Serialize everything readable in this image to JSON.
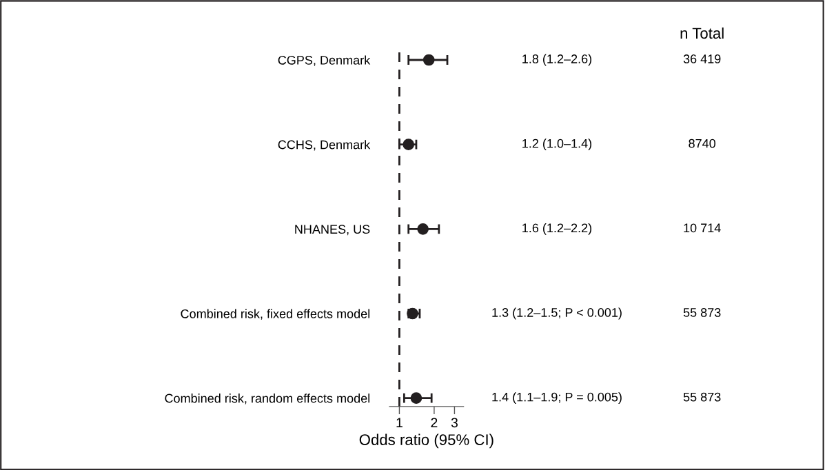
{
  "chart_data": {
    "type": "scatter",
    "orientation": "horizontal",
    "xlabel": "Odds ratio (95% CI)",
    "categories": [
      "CGPS, Denmark",
      "CCHS, Denmark",
      "NHANES, US",
      "Combined risk, fixed effects model",
      "Combined risk, random effects model"
    ],
    "values": [
      1.8,
      1.2,
      1.6,
      1.3,
      1.4
    ],
    "errors": [
      [
        1.2,
        2.6
      ],
      [
        1.0,
        1.4
      ],
      [
        1.2,
        2.2
      ],
      [
        1.2,
        1.5
      ],
      [
        1.1,
        1.9
      ]
    ],
    "color": "#231f20",
    "marker": "circle",
    "log": "x",
    "xlim": [
      0.82,
      3.6
    ],
    "xticks": [
      1,
      2,
      3
    ],
    "ref_lines": [
      {
        "axis": "x",
        "value": 1,
        "line_style": "dashed",
        "color": "#231f20"
      }
    ],
    "annotations": [
      "n Total",
      "1.8 (1.2–2.6)",
      "1.2 (1.0–1.4)",
      "1.6 (1.2–2.2)",
      "1.3 (1.2–1.5; P < 0.001)",
      "1.4 (1.1–1.9; P = 0.005)",
      "36 419",
      "8740",
      "10 714",
      "55 873",
      "55 873"
    ],
    "grid": false,
    "legend": false
  }
}
